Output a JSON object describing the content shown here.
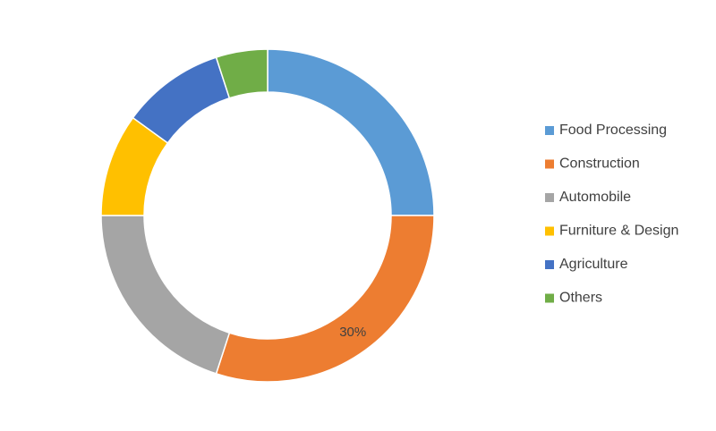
{
  "chart_data": {
    "type": "donut",
    "categories": [
      "Food Processing",
      "Construction",
      "Automobile",
      "Furniture & Design",
      "Agriculture",
      "Others"
    ],
    "values": [
      25,
      30,
      20,
      10,
      10,
      5
    ],
    "value_labels": [
      null,
      "30%",
      null,
      null,
      null,
      null
    ],
    "colors": [
      "#5b9bd5",
      "#ed7d31",
      "#a5a5a5",
      "#ffc000",
      "#4472c4",
      "#70ad47"
    ],
    "legend": "right"
  }
}
